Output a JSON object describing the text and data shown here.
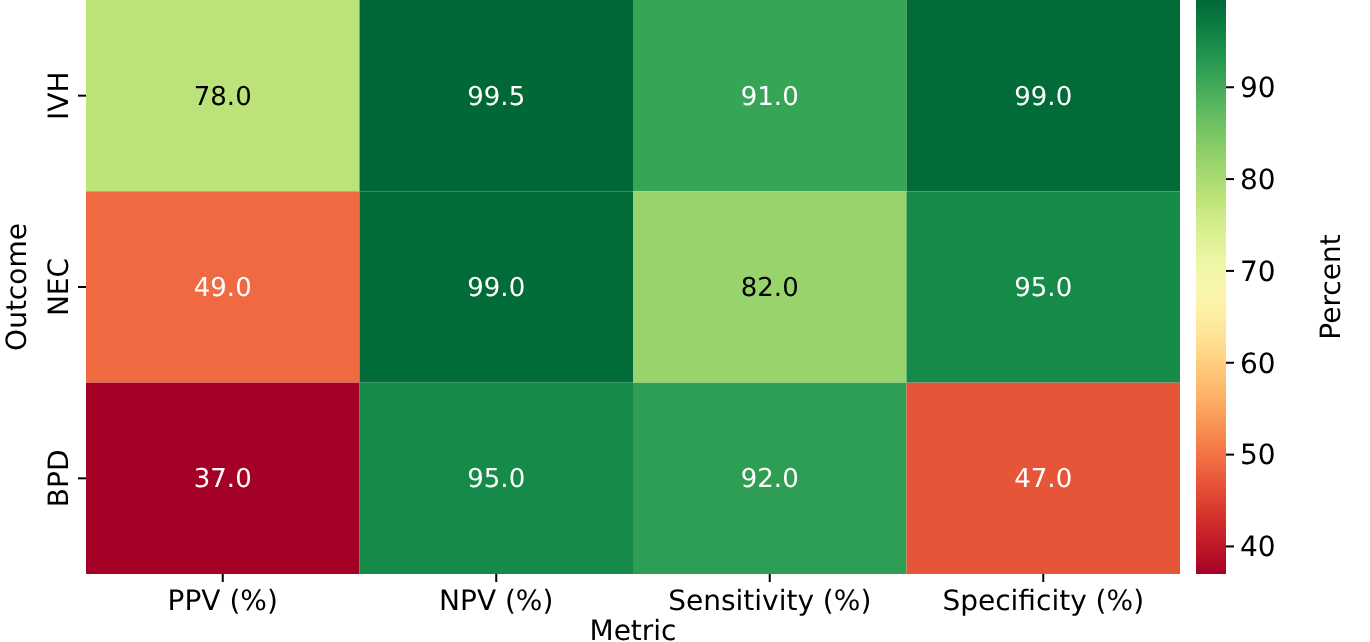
{
  "chart_data": {
    "type": "heatmap",
    "xlabel": "Metric",
    "ylabel": "Outcome",
    "clabel": "Percent",
    "categories": [
      "PPV (%)",
      "NPV (%)",
      "Sensitivity (%)",
      "Specificity (%)"
    ],
    "y_categories": [
      "IVH",
      "NEC",
      "BPD"
    ],
    "cells": [
      [
        78.0,
        99.5,
        91.0,
        99.0
      ],
      [
        49.0,
        99.0,
        82.0,
        95.0
      ],
      [
        37.0,
        95.0,
        92.0,
        47.0
      ]
    ],
    "cell_labels": [
      [
        "78.0",
        "99.5",
        "91.0",
        "99.0"
      ],
      [
        "49.0",
        "99.0",
        "82.0",
        "95.0"
      ],
      [
        "37.0",
        "95.0",
        "92.0",
        "47.0"
      ]
    ],
    "clim": [
      37,
      99.5
    ],
    "cticks": [
      40,
      50,
      60,
      70,
      80,
      90
    ]
  }
}
